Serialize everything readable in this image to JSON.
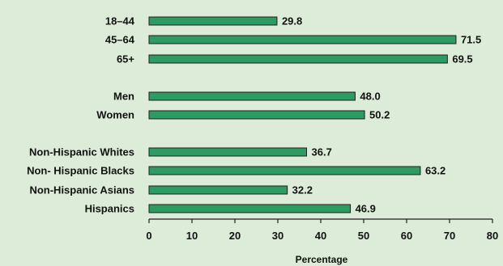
{
  "colors": {
    "background": "#DDECD8",
    "bar_fill": "#2E9B63",
    "bar_stroke": "#1F1F1F",
    "axis": "#1F1F1F",
    "text": "#111111"
  },
  "chart_data": {
    "type": "bar",
    "orientation": "horizontal",
    "categories": [
      "18–44",
      "45–64",
      "65+",
      "Men",
      "Women",
      "Non-Hispanic Whites",
      "Non- Hispanic Blacks",
      "Non-Hispanic Asians",
      "Hispanics"
    ],
    "groups": [
      [
        "18–44",
        "45–64",
        "65+"
      ],
      [
        "Men",
        "Women"
      ],
      [
        "Non-Hispanic Whites",
        "Non- Hispanic Blacks",
        "Non-Hispanic Asians",
        "Hispanics"
      ]
    ],
    "values": [
      29.8,
      71.5,
      69.5,
      48.0,
      50.2,
      36.7,
      63.2,
      32.2,
      46.9
    ],
    "value_labels": [
      "29.8",
      "71.5",
      "69.5",
      "48.0",
      "50.2",
      "36.7",
      "63.2",
      "32.2",
      "46.9"
    ],
    "title": "",
    "xlabel": "Percentage",
    "ylabel": "",
    "xlim": [
      0,
      80
    ],
    "xticks": [
      "0",
      "10",
      "20",
      "30",
      "40",
      "50",
      "60",
      "70",
      "80"
    ],
    "grid": false,
    "legend": "none"
  }
}
